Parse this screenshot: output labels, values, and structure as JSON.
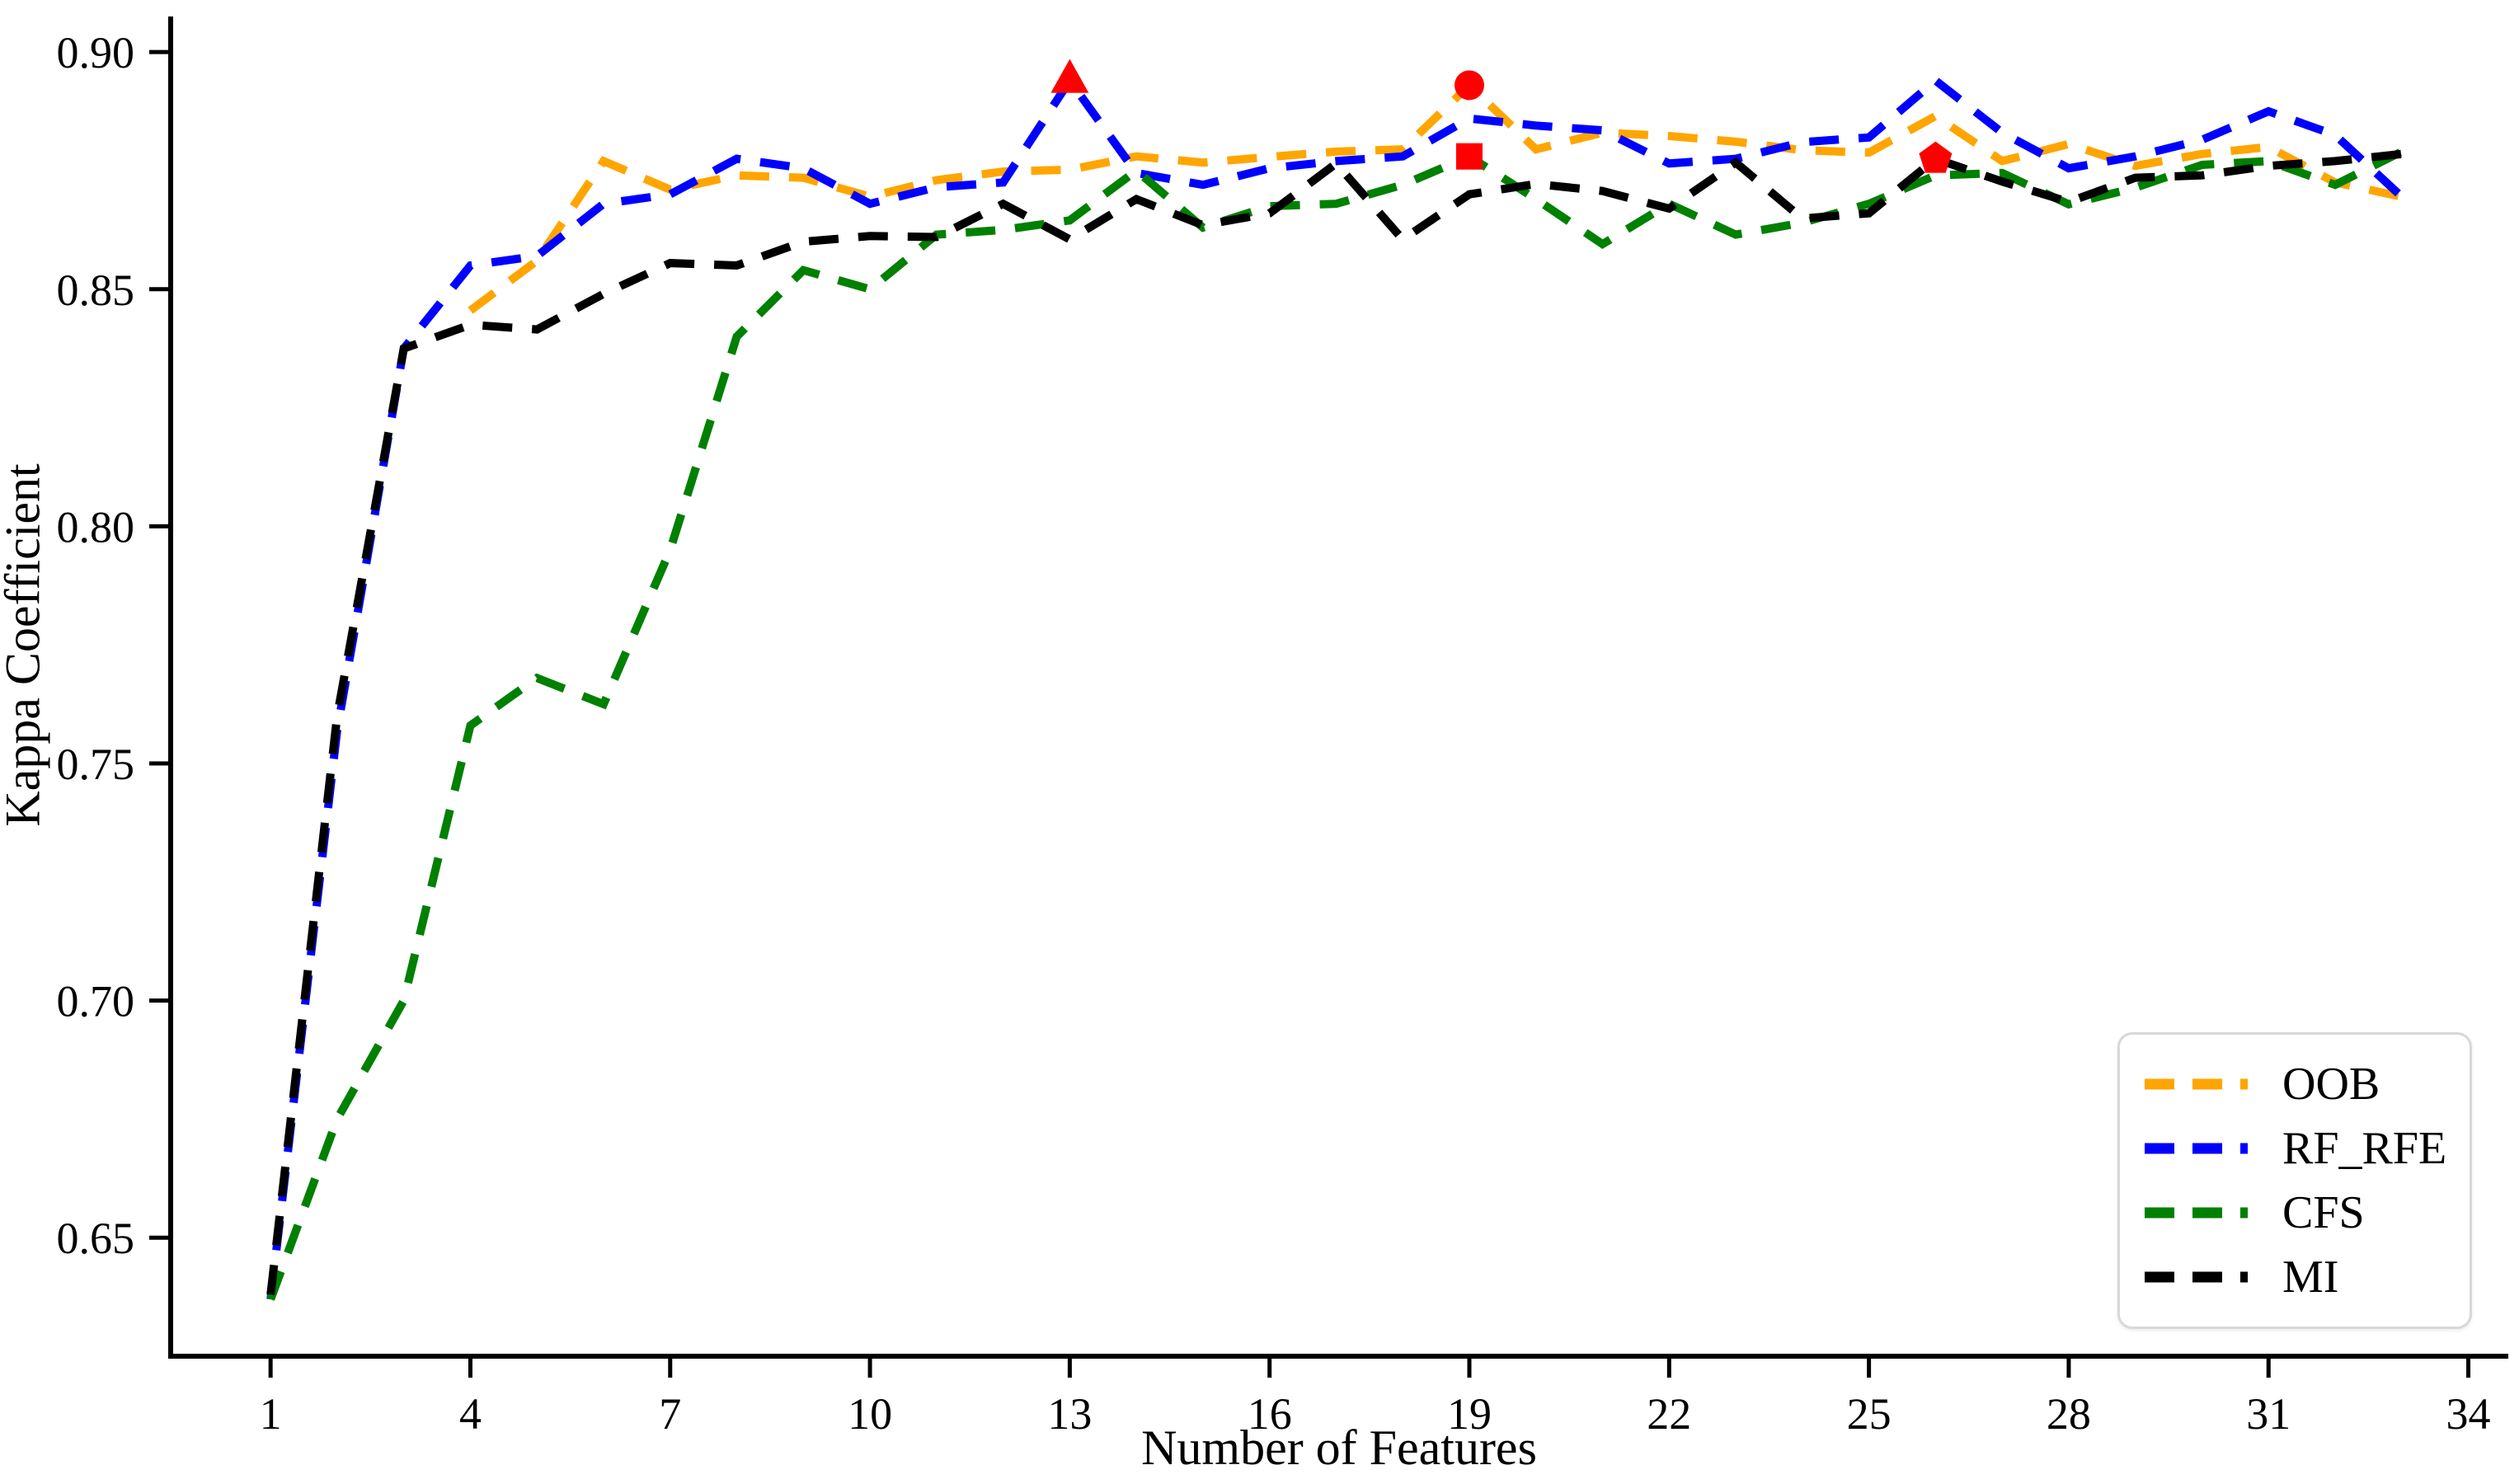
{
  "chart_data": {
    "type": "line",
    "title": "",
    "xlabel": "Number of Features",
    "ylabel": "Kappa Coefficient",
    "line_style": "dashed",
    "grid": false,
    "legend_position": "lower right",
    "xlim": [
      -0.5,
      34.6
    ],
    "ylim": [
      0.625,
      0.9075
    ],
    "x_ticks": [
      1,
      4,
      7,
      10,
      13,
      16,
      19,
      22,
      25,
      28,
      31,
      34
    ],
    "y_ticks": [
      0.65,
      0.7,
      0.75,
      0.8,
      0.85,
      0.9
    ],
    "x": [
      1,
      2,
      3,
      4,
      5,
      6,
      7,
      8,
      9,
      10,
      11,
      12,
      13,
      14,
      15,
      16,
      17,
      18,
      19,
      20,
      21,
      22,
      23,
      24,
      25,
      26,
      27,
      28,
      29,
      30,
      31,
      32,
      33
    ],
    "series": [
      {
        "name": "OOB",
        "color": "#ffa500",
        "values": [
          null,
          null,
          null,
          0.8455,
          0.856,
          0.877,
          0.871,
          0.874,
          0.8735,
          0.8695,
          0.873,
          0.8748,
          0.8752,
          0.878,
          0.8767,
          0.8779,
          0.879,
          0.8795,
          0.893,
          0.8795,
          0.883,
          0.8823,
          0.8811,
          0.8793,
          0.8788,
          0.8865,
          0.877,
          0.8806,
          0.876,
          0.8785,
          0.88,
          0.8725,
          0.8695
        ]
      },
      {
        "name": "RF_RFE",
        "color": "#0000ff",
        "values": [
          0.637,
          0.757,
          0.8375,
          0.855,
          0.857,
          0.868,
          0.87,
          0.8775,
          0.8755,
          0.868,
          0.8715,
          0.8725,
          0.894,
          0.8745,
          0.872,
          0.8755,
          0.877,
          0.878,
          0.886,
          0.8845,
          0.8835,
          0.8765,
          0.8775,
          0.881,
          0.882,
          0.894,
          0.883,
          0.8755,
          0.878,
          0.8815,
          0.8875,
          0.8825,
          0.8695
        ]
      },
      {
        "name": "CFS",
        "color": "#008000",
        "values": [
          0.637,
          0.675,
          0.7,
          0.758,
          0.768,
          0.7625,
          0.795,
          0.84,
          0.854,
          0.85,
          0.8615,
          0.8625,
          0.8645,
          0.875,
          0.863,
          0.8675,
          0.868,
          0.872,
          0.878,
          0.869,
          0.8595,
          0.868,
          0.8615,
          0.864,
          0.868,
          0.874,
          0.8745,
          0.8679,
          0.8714,
          0.8762,
          0.877,
          0.872,
          0.879
        ]
      },
      {
        "name": "MI",
        "color": "#000000",
        "values": [
          0.638,
          0.76,
          0.8375,
          0.8425,
          0.8415,
          0.849,
          0.8555,
          0.855,
          0.86,
          0.8612,
          0.861,
          0.868,
          0.8605,
          0.869,
          0.8635,
          0.866,
          0.8765,
          0.8605,
          0.87,
          0.8722,
          0.8707,
          0.867,
          0.8767,
          0.8649,
          0.866,
          0.8775,
          0.8727,
          0.8684,
          0.8735,
          0.874,
          0.876,
          0.877,
          0.8785
        ]
      }
    ],
    "markers": [
      {
        "series": "RF_RFE",
        "shape": "triangle",
        "x": 13,
        "y": 0.894,
        "color": "#ff0000"
      },
      {
        "series": "OOB",
        "shape": "circle",
        "x": 19,
        "y": 0.893,
        "color": "#ff0000"
      },
      {
        "series": "CFS",
        "shape": "square",
        "x": 19,
        "y": 0.878,
        "color": "#ff0000"
      },
      {
        "series": "MI",
        "shape": "pentagon",
        "x": 26,
        "y": 0.8775,
        "color": "#ff0000"
      }
    ]
  }
}
